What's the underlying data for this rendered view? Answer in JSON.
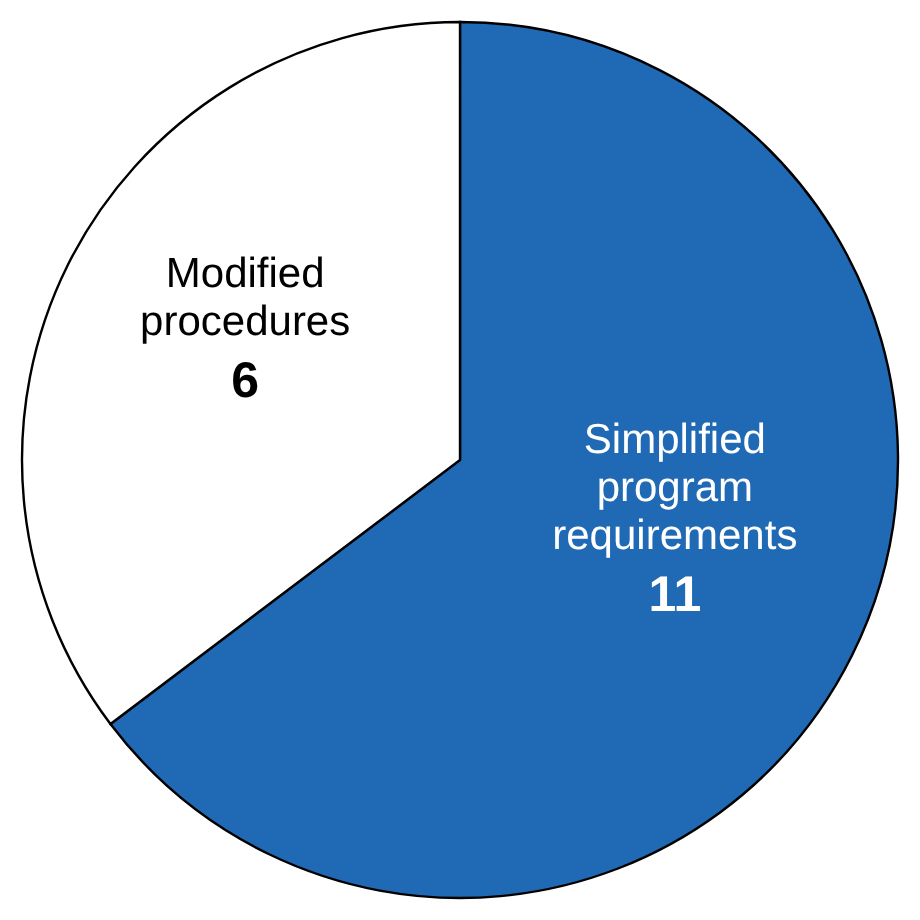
{
  "chart_data": {
    "type": "pie",
    "categories": [
      "Simplified program requirements",
      "Modified procedures"
    ],
    "values": [
      11,
      6
    ],
    "colors": [
      "#2069b4",
      "#ffffff"
    ],
    "data_labels": true
  }
}
